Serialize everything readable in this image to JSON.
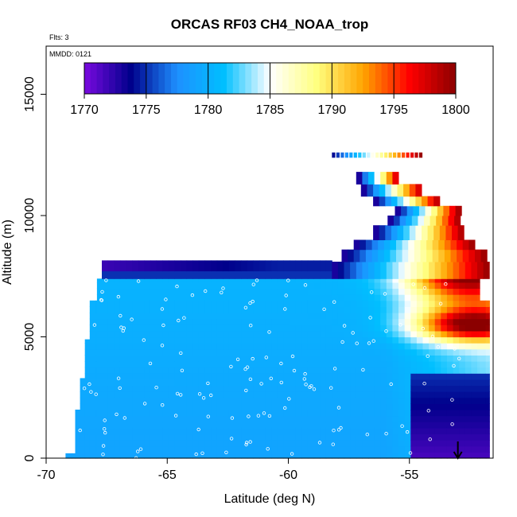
{
  "chart_data": {
    "type": "heatmap",
    "title": "ORCAS RF03 CH4_NOAA_trop",
    "xlabel": "Latitude (deg N)",
    "ylabel": "Altitude (m)",
    "xlim": [
      -70,
      -51.5
    ],
    "ylim": [
      0,
      17000
    ],
    "x_ticks": [
      -70,
      -65,
      -60,
      -55
    ],
    "y_ticks": [
      0,
      5000,
      10000,
      15000
    ],
    "notes": [
      "Flts: 3",
      "MMDD: 0121"
    ],
    "colorbar": {
      "min": 1770,
      "max": 1800,
      "ticks": [
        1770,
        1775,
        1780,
        1785,
        1790,
        1795,
        1800
      ],
      "colors": [
        "#7a0ae0",
        "#00008b",
        "#1e90ff",
        "#00bfff",
        "#ffffff",
        "#ffff80",
        "#ffa500",
        "#ff0000",
        "#8b0000"
      ]
    },
    "coverage": [
      {
        "lat_start": -69.2,
        "lat_end": -68.8,
        "alt_top": 200
      },
      {
        "lat_start": -68.8,
        "lat_end": -68.6,
        "alt_top": 2000
      },
      {
        "lat_start": -68.6,
        "lat_end": -68.4,
        "alt_top": 3300
      },
      {
        "lat_start": -68.4,
        "lat_end": -68.2,
        "alt_top": 4900
      },
      {
        "lat_start": -68.2,
        "lat_end": -67.9,
        "alt_top": 6500
      },
      {
        "lat_start": -67.9,
        "lat_end": -67.7,
        "alt_top": 7400
      },
      {
        "lat_start": -67.7,
        "lat_end": -54.7,
        "alt_top": 7400
      },
      {
        "lat_start": -54.7,
        "lat_end": -52.1,
        "alt_top": 7400
      },
      {
        "lat_start": -52.1,
        "lat_end": -51.7,
        "alt_top": 6500
      }
    ],
    "plume_upper": {
      "lat_center": -52.6,
      "alt_center": 7800,
      "peak": 1800
    },
    "plume_mid": {
      "lat_center": -52.4,
      "alt_center": 5500,
      "peak": 1798
    },
    "arrow_latitude": -53
  }
}
